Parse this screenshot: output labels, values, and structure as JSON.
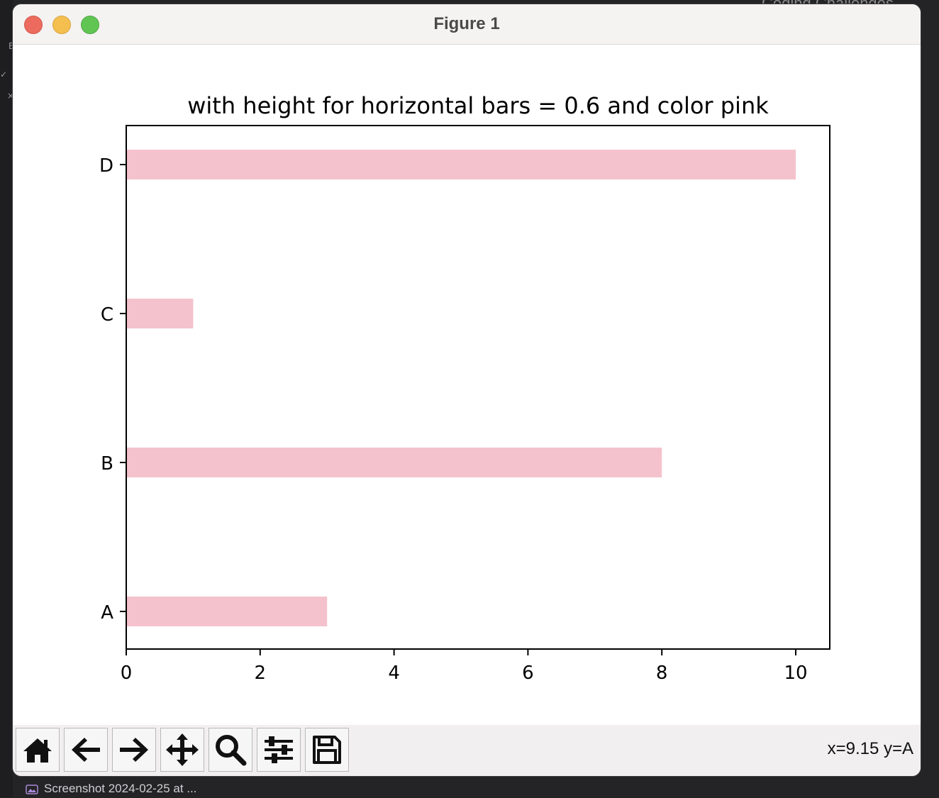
{
  "window": {
    "title": "Figure 1",
    "coord_readout": "x=9.15 y=A"
  },
  "toolbar": {
    "buttons": [
      {
        "name": "home",
        "icon": "home-icon"
      },
      {
        "name": "back",
        "icon": "arrow-left-icon"
      },
      {
        "name": "forward",
        "icon": "arrow-right-icon"
      },
      {
        "name": "pan",
        "icon": "move-icon"
      },
      {
        "name": "zoom",
        "icon": "search-icon"
      },
      {
        "name": "configure",
        "icon": "sliders-icon"
      },
      {
        "name": "save",
        "icon": "floppy-icon"
      }
    ]
  },
  "background": {
    "right_text": "Coding Challenges",
    "taskbar_label": "Screenshot 2024-02-25 at ..."
  },
  "chart_data": {
    "type": "bar",
    "orientation": "horizontal",
    "title": "with height for horizontal bars = 0.6 and color pink",
    "categories": [
      "A",
      "B",
      "C",
      "D"
    ],
    "values": [
      3,
      8,
      1,
      10
    ],
    "bar_height": 0.6,
    "color": "#f4c2cc",
    "xlim": [
      0,
      10.5
    ],
    "xticks": [
      0,
      2,
      4,
      6,
      8,
      10
    ],
    "xlabel": "",
    "ylabel": "",
    "grid": false
  }
}
